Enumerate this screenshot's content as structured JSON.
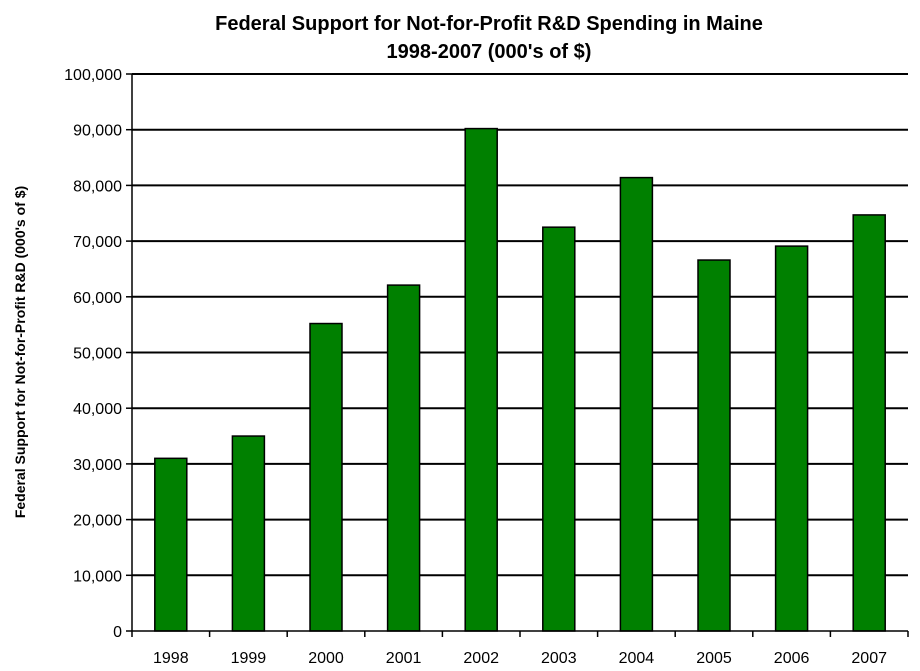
{
  "chart_data": {
    "type": "bar",
    "title_lines": [
      "Federal Support for Not-for-Profit R&D Spending in Maine",
      "1998-2007 (000's of $)"
    ],
    "xlabel": "",
    "ylabel": "Federal Support for Not-for-Profit R&D (000's of $)",
    "categories": [
      "1998",
      "1999",
      "2000",
      "2001",
      "2002",
      "2003",
      "2004",
      "2005",
      "2006",
      "2007"
    ],
    "values": [
      31000,
      35000,
      55200,
      62100,
      90200,
      72500,
      81400,
      66600,
      69100,
      74700
    ],
    "ylim": [
      0,
      100000
    ],
    "y_ticks": [
      0,
      10000,
      20000,
      30000,
      40000,
      50000,
      60000,
      70000,
      80000,
      90000,
      100000
    ],
    "y_tick_labels": [
      "0",
      "10,000",
      "20,000",
      "30,000",
      "40,000",
      "50,000",
      "60,000",
      "70,000",
      "80,000",
      "90,000",
      "100,000"
    ],
    "grid": true,
    "legend": "none",
    "bar_color": "#008000",
    "bar_outline_color": "#000000"
  }
}
